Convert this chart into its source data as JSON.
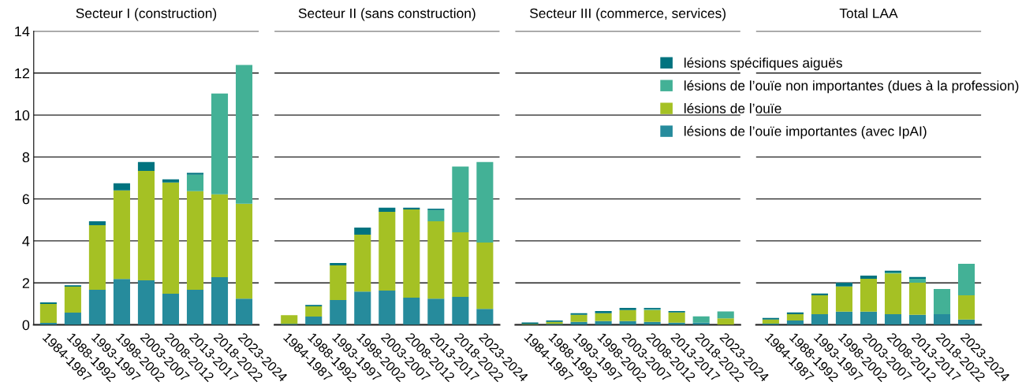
{
  "chart_data": [
    {
      "type": "bar",
      "stacked": true,
      "title": "Secteur I (construction)",
      "categories": [
        "1984-1987",
        "1988-1992",
        "1993-1997",
        "1998-2002",
        "2003-2007",
        "2008-2012",
        "2013-2017",
        "2018-2022",
        "2023-2024"
      ],
      "ylim": [
        0,
        14
      ],
      "yticks": [
        0,
        2,
        4,
        6,
        8,
        10,
        12,
        14
      ],
      "grid": "y",
      "series": [
        {
          "color": "#268b9c",
          "values": [
            0.09,
            0.58,
            1.67,
            2.19,
            2.12,
            1.48,
            1.67,
            2.27,
            1.25
          ]
        },
        {
          "color": "#a5c124",
          "values": [
            0.9,
            1.24,
            3.08,
            4.22,
            5.22,
            5.3,
            4.7,
            3.95,
            4.52
          ]
        },
        {
          "color": "#43b196",
          "values": [
            0,
            0,
            0,
            0,
            0,
            0,
            0.79,
            4.81,
            6.62
          ]
        },
        {
          "color": "#00737f",
          "values": [
            0.08,
            0.07,
            0.19,
            0.34,
            0.42,
            0.15,
            0.08,
            0,
            0
          ]
        }
      ]
    },
    {
      "type": "bar",
      "stacked": true,
      "title": "Secteur II (sans construction)",
      "categories": [
        "1984-1987",
        "1988-1992",
        "1993-1997",
        "1998-2002",
        "2003-2007",
        "2008-2012",
        "2013-2017",
        "2018-2022",
        "2023-2024"
      ],
      "ylim": [
        0,
        14
      ],
      "yticks": [
        0,
        2,
        4,
        6,
        8,
        10,
        12,
        14
      ],
      "grid": "y",
      "tick_labels": "x",
      "series": [
        {
          "color": "#268b9c",
          "values": [
            0.05,
            0.39,
            1.18,
            1.59,
            1.63,
            1.29,
            1.25,
            1.33,
            0.76
          ]
        },
        {
          "color": "#a5c124",
          "values": [
            0.41,
            0.49,
            1.65,
            2.71,
            3.76,
            4.21,
            3.69,
            3.08,
            3.16
          ]
        },
        {
          "color": "#43b196",
          "values": [
            0,
            0,
            0,
            0,
            0,
            0,
            0.53,
            3.13,
            3.84
          ]
        },
        {
          "color": "#00737f",
          "values": [
            0,
            0.07,
            0.12,
            0.34,
            0.19,
            0.08,
            0.07,
            0,
            0
          ]
        }
      ]
    },
    {
      "type": "bar",
      "stacked": true,
      "title": "Secteur III (commerce, services)",
      "categories": [
        "1984-1987",
        "1988-1992",
        "1993-1997",
        "1998-2002",
        "2003-2007",
        "2008-2012",
        "2013-2017",
        "2018-2022",
        "2023-2024"
      ],
      "ylim": [
        0,
        14
      ],
      "yticks": [
        0,
        2,
        4,
        6,
        8,
        10,
        12,
        14
      ],
      "grid": "y",
      "legend": "top right",
      "tick_labels": "x",
      "series": [
        {
          "name": "lésions de l’ouïe importantes (avec IpAI)",
          "color": "#268b9c",
          "values": [
            null,
            0.05,
            0.14,
            0.18,
            0.18,
            0.14,
            0.1,
            0.1,
            null
          ]
        },
        {
          "name": "lésions de l’ouïe",
          "color": "#a5c124",
          "values": [
            0.04,
            0.09,
            0.34,
            0.37,
            0.52,
            0.56,
            0.49,
            0,
            0.31
          ]
        },
        {
          "name": "lésions de l’ouïe non importantes (dues à la profession)",
          "color": "#43b196",
          "values": [
            0,
            0,
            0,
            0,
            0,
            0.04,
            0,
            0.3,
            0.33
          ]
        },
        {
          "name": "lésions spécifiques aiguës",
          "color": "#00737f",
          "values": [
            0.07,
            0.07,
            0.07,
            0.11,
            0.11,
            0.07,
            0.07,
            0,
            0
          ]
        }
      ]
    },
    {
      "type": "bar",
      "stacked": true,
      "title": "Total LAA",
      "categories": [
        "1984-1987",
        "1988-1992",
        "1993-1997",
        "1998-2002",
        "2003-2007",
        "2008-2012",
        "2013-2017",
        "2018-2022",
        "2023-2024"
      ],
      "ylim": [
        0,
        14
      ],
      "yticks": [
        0,
        2,
        4,
        6,
        8,
        10,
        12,
        14
      ],
      "grid": "y",
      "tick_labels": "x",
      "series": [
        {
          "color": "#268b9c",
          "values": [
            0.06,
            0.21,
            0.51,
            0.63,
            0.63,
            0.51,
            0.48,
            0.51,
            0.25
          ]
        },
        {
          "color": "#a5c124",
          "values": [
            0.19,
            0.3,
            0.9,
            1.2,
            1.57,
            1.94,
            1.53,
            0,
            1.16
          ]
        },
        {
          "color": "#43b196",
          "values": [
            0,
            0,
            0,
            0,
            0,
            0.05,
            0.19,
            1.2,
            1.5
          ]
        },
        {
          "color": "#00737f",
          "values": [
            0.08,
            0.08,
            0.08,
            0.18,
            0.15,
            0.08,
            0.08,
            0,
            0
          ]
        }
      ]
    }
  ]
}
